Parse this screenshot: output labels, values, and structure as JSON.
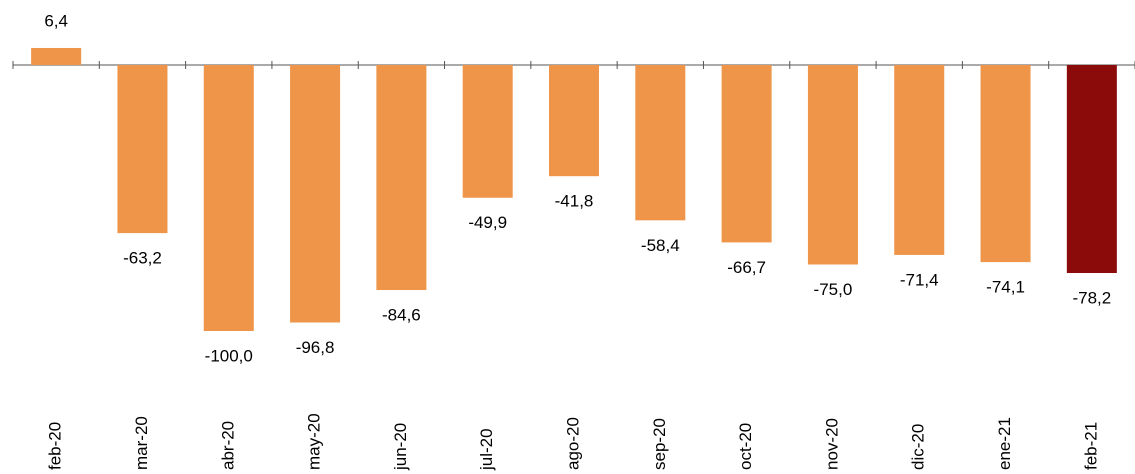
{
  "chart_data": {
    "type": "bar",
    "categories": [
      "feb-20",
      "mar-20",
      "abr-20",
      "may-20",
      "jun-20",
      "jul-20",
      "ago-20",
      "sep-20",
      "oct-20",
      "nov-20",
      "dic-20",
      "ene-21",
      "feb-21"
    ],
    "values": [
      6.4,
      -63.2,
      -100.0,
      -96.8,
      -84.6,
      -49.9,
      -41.8,
      -58.4,
      -66.7,
      -75.0,
      -71.4,
      -74.1,
      -78.2
    ],
    "value_labels": [
      "6,4",
      "-63,2",
      "-100,0",
      "-96,8",
      "-84,6",
      "-49,9",
      "-41,8",
      "-58,4",
      "-66,7",
      "-75,0",
      "-71,4",
      "-74,1",
      "-78,2"
    ],
    "colors": [
      "#ee9549",
      "#ee9549",
      "#ee9549",
      "#ee9549",
      "#ee9549",
      "#ee9549",
      "#ee9549",
      "#ee9549",
      "#ee9549",
      "#ee9549",
      "#ee9549",
      "#ee9549",
      "#8b0a0a"
    ]
  }
}
